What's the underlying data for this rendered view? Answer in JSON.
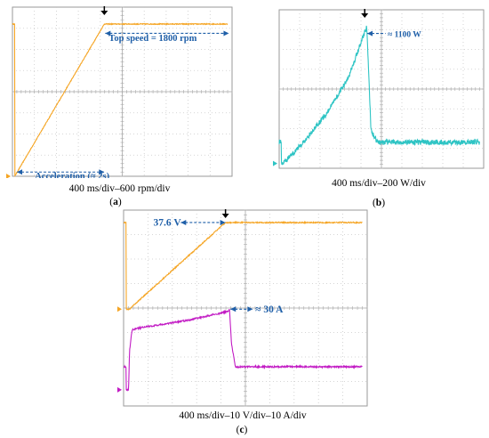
{
  "chart_data": [
    {
      "panel": "a",
      "type": "line",
      "caption": "400 ms/div–600 rpm/div",
      "series": [
        {
          "color": "#f5a524",
          "shape": [
            [
              0.0,
              0.0
            ],
            [
              2.0,
              1800
            ],
            [
              4.8,
              1800
            ]
          ],
          "noise": 5
        }
      ],
      "xlim": [
        -0.05,
        4.85
      ],
      "ylim": [
        0,
        2000
      ],
      "grid": {
        "cols": 10,
        "rows": 8
      },
      "annotations": [
        {
          "text": "Top speed = 1800 rpm",
          "from": [
            2.02,
            1690
          ],
          "to": [
            4.78,
            1690
          ],
          "double": true,
          "text_pos": [
            2.1,
            1600
          ],
          "size": 10.5
        },
        {
          "text": "Acceleration (≈ 2s)",
          "from": [
            0.05,
            50
          ],
          "to": [
            2.0,
            50
          ],
          "double": true,
          "text_pos": [
            0.45,
            -30
          ],
          "size": 10.5
        }
      ],
      "trigger_x": 2.0,
      "ground_marker": 0
    },
    {
      "panel": "b",
      "type": "line",
      "caption": "400 ms/div–200 W/div",
      "series": [
        {
          "color": "#2ec4c4",
          "shape": [
            [
              0.0,
              0.0
            ],
            [
              0.1,
              20
            ],
            [
              0.6,
              210
            ],
            [
              1.1,
              430
            ],
            [
              1.6,
              720
            ],
            [
              1.98,
              1090
            ],
            [
              2.05,
              1160
            ],
            [
              2.1,
              720
            ],
            [
              2.15,
              280
            ],
            [
              2.3,
              180
            ],
            [
              4.8,
              180
            ]
          ],
          "noise": 22
        }
      ],
      "xlim": [
        -0.05,
        4.85
      ],
      "ylim": [
        -40,
        1300
      ],
      "grid": {
        "cols": 10,
        "rows": 8
      },
      "annotations": [
        {
          "text": "≈ 1100 W",
          "from": [
            2.06,
            1100
          ],
          "to": [
            2.5,
            1100
          ],
          "double": false,
          "text_pos": [
            2.55,
            1070
          ],
          "size": 9.5
        }
      ],
      "trigger_x": 2.0,
      "ground_marker": 0
    },
    {
      "panel": "c",
      "type": "line",
      "caption": "400 ms/div–10 V/div–10 A/div",
      "series": [
        {
          "color": "#f5a524",
          "shape": [
            [
              0.0,
              0.0
            ],
            [
              0.08,
              0.0
            ],
            [
              0.1,
              0.7
            ],
            [
              2.0,
              37.6
            ],
            [
              4.8,
              37.6
            ]
          ],
          "noise": 0.25
        },
        {
          "color": "#c21bc4",
          "shape": [
            [
              0.0,
              -35
            ],
            [
              0.05,
              -35
            ],
            [
              0.07,
              -18
            ],
            [
              0.12,
              -9
            ],
            [
              0.3,
              -8
            ],
            [
              1.2,
              -5
            ],
            [
              2.05,
              -1
            ],
            [
              2.08,
              0
            ],
            [
              2.12,
              -15
            ],
            [
              2.2,
              -25
            ],
            [
              4.8,
              -25
            ]
          ],
          "noise": 0.35
        }
      ],
      "xlim": [
        -0.05,
        4.85
      ],
      "ylim": [
        -42,
        43
      ],
      "grid": {
        "cols": 10,
        "rows": 8
      },
      "annotations": [
        {
          "text": "37.6 V",
          "from": [
            1.1,
            37.6
          ],
          "to": [
            2.0,
            37.6
          ],
          "double": false,
          "reverse": true,
          "text_pos": [
            0.55,
            36.2
          ],
          "size": 11.5
        },
        {
          "text": "≈ 30 A",
          "from": [
            2.1,
            0
          ],
          "to": [
            2.55,
            0
          ],
          "double": false,
          "reverse": true,
          "text_pos": [
            2.6,
            -1.5
          ],
          "size": 11.5
        }
      ],
      "trigger_x": 2.0,
      "ground_marker": 0,
      "ground_marker_2": -35
    }
  ],
  "labels": {
    "a": "a",
    "b": "b",
    "c": "c"
  },
  "captions": {
    "a": "400 ms/div–600 rpm/div",
    "b": "400 ms/div–200 W/div",
    "c": "400 ms/div–10 V/div–10 A/div"
  },
  "colors": {
    "grid": "#c9c9c9",
    "frame": "#9a9a9a",
    "trigger": "#000000",
    "annotation": "#1f5fa8"
  }
}
